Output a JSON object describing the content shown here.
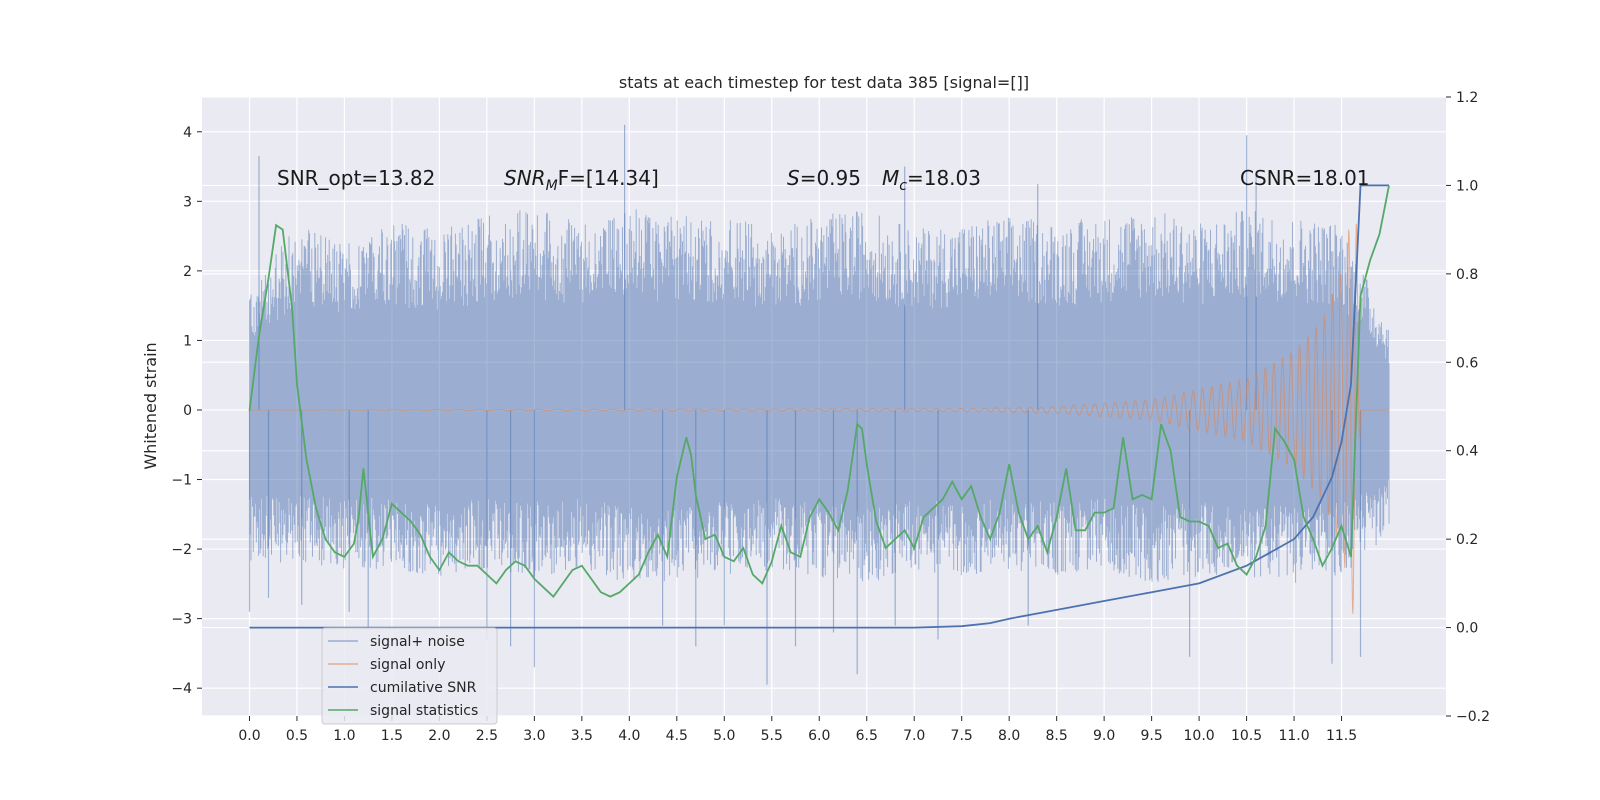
{
  "chart_data": {
    "type": "line",
    "title": "stats at each timestep for test data 385 [signal=[]]",
    "ylabel": "Whitened strain",
    "xlabel": "",
    "xlim": [
      -0.5,
      12.6
    ],
    "ylim": [
      -4.4,
      4.5
    ],
    "ylim_right": [
      -0.2,
      1.2
    ],
    "x_ticks": [
      0.0,
      0.5,
      1.0,
      1.5,
      2.0,
      2.5,
      3.0,
      3.5,
      4.0,
      4.5,
      5.0,
      5.5,
      6.0,
      6.5,
      7.0,
      7.5,
      8.0,
      8.5,
      9.0,
      9.5,
      10.0,
      10.5,
      11.0,
      11.5
    ],
    "x_tick_labels": [
      "0.0",
      "0.5",
      "1.0",
      "1.5",
      "2.0",
      "2.5",
      "3.0",
      "3.5",
      "4.0",
      "4.5",
      "5.0",
      "5.5",
      "6.0",
      "6.5",
      "7.0",
      "7.5",
      "8.0",
      "8.5",
      "9.0",
      "9.5",
      "10.0",
      "10.5",
      "11.0",
      "11.5"
    ],
    "y_ticks": [
      -4,
      -3,
      -2,
      -1,
      0,
      1,
      2,
      3,
      4
    ],
    "y_tick_labels": [
      "−4",
      "−3",
      "−2",
      "−1",
      "0",
      "1",
      "2",
      "3",
      "4"
    ],
    "y_ticks_right": [
      -0.2,
      0.0,
      0.2,
      0.4,
      0.6,
      0.8,
      1.0,
      1.2
    ],
    "y_tick_labels_right": [
      "−0.2",
      "0.0",
      "0.2",
      "0.4",
      "0.6",
      "0.8",
      "1.0",
      "1.2"
    ],
    "grid": true,
    "legend": {
      "placement": "lower-left",
      "entries": [
        "signal+ noise",
        "signal only",
        "cumilative SNR",
        "signal statistics"
      ]
    },
    "annotations": {
      "snr_opt": "SNR_opt=13.82",
      "snr_mf_pre": "SNR",
      "snr_mf_sub": "M",
      "snr_mf_post": "F=[14.34]",
      "s_pre": "S",
      "s_post": "=0.95",
      "mc_pre": "M",
      "mc_sub": "c",
      "mc_post": "=18.03",
      "csnr": "CSNR=18.01"
    },
    "series": [
      {
        "name": "signal+ noise",
        "axis": "left",
        "color": "#4c72b0",
        "description_of_values": "dense noise time series; envelope given below",
        "t_range": [
          0.0,
          12.0
        ],
        "upper_envelope": [
          [
            0.0,
            1.7
          ],
          [
            0.5,
            2.7
          ],
          [
            1.0,
            2.5
          ],
          [
            1.5,
            2.7
          ],
          [
            2.0,
            2.6
          ],
          [
            2.5,
            2.8
          ],
          [
            3.0,
            2.9
          ],
          [
            3.5,
            2.7
          ],
          [
            4.0,
            2.9
          ],
          [
            4.5,
            2.8
          ],
          [
            5.0,
            2.8
          ],
          [
            5.5,
            2.6
          ],
          [
            6.0,
            2.8
          ],
          [
            6.5,
            2.9
          ],
          [
            7.0,
            2.6
          ],
          [
            7.5,
            2.7
          ],
          [
            8.0,
            2.8
          ],
          [
            8.5,
            2.7
          ],
          [
            9.0,
            2.8
          ],
          [
            9.5,
            2.9
          ],
          [
            10.0,
            2.7
          ],
          [
            10.5,
            2.9
          ],
          [
            11.0,
            2.8
          ],
          [
            11.5,
            2.7
          ],
          [
            12.0,
            1.2
          ]
        ],
        "lower_envelope": [
          [
            0.0,
            -2.2
          ],
          [
            0.5,
            -2.2
          ],
          [
            1.0,
            -2.3
          ],
          [
            1.5,
            -2.3
          ],
          [
            2.0,
            -2.4
          ],
          [
            2.5,
            -2.3
          ],
          [
            3.0,
            -2.4
          ],
          [
            3.5,
            -2.3
          ],
          [
            4.0,
            -2.5
          ],
          [
            4.5,
            -2.5
          ],
          [
            5.0,
            -2.4
          ],
          [
            5.5,
            -2.3
          ],
          [
            6.0,
            -2.4
          ],
          [
            6.5,
            -2.5
          ],
          [
            7.0,
            -2.3
          ],
          [
            7.5,
            -2.4
          ],
          [
            8.0,
            -2.3
          ],
          [
            8.5,
            -2.4
          ],
          [
            9.0,
            -2.3
          ],
          [
            9.5,
            -2.5
          ],
          [
            10.0,
            -2.4
          ],
          [
            10.5,
            -2.4
          ],
          [
            11.0,
            -2.5
          ],
          [
            11.5,
            -2.4
          ],
          [
            12.0,
            -1.8
          ]
        ],
        "spikes": [
          [
            0.0,
            -2.9
          ],
          [
            0.1,
            3.65
          ],
          [
            0.2,
            -2.7
          ],
          [
            0.55,
            -2.8
          ],
          [
            1.05,
            -2.9
          ],
          [
            1.25,
            -3.15
          ],
          [
            2.5,
            -3.3
          ],
          [
            2.75,
            -3.4
          ],
          [
            3.0,
            -3.7
          ],
          [
            3.95,
            4.1
          ],
          [
            4.35,
            -3.1
          ],
          [
            4.7,
            -3.4
          ],
          [
            5.0,
            -3.1
          ],
          [
            5.45,
            -3.95
          ],
          [
            5.75,
            -3.4
          ],
          [
            6.15,
            -3.2
          ],
          [
            6.4,
            -3.8
          ],
          [
            6.8,
            -3.1
          ],
          [
            6.9,
            3.5
          ],
          [
            7.25,
            -3.3
          ],
          [
            8.2,
            -3.1
          ],
          [
            8.3,
            3.25
          ],
          [
            9.9,
            -3.55
          ],
          [
            10.5,
            3.95
          ],
          [
            10.6,
            3.4
          ],
          [
            11.4,
            -3.65
          ],
          [
            11.7,
            -3.55
          ]
        ]
      },
      {
        "name": "signal only",
        "axis": "left",
        "color": "#dd8452",
        "description_of_values": "chirp: flat near 0 until ~7.5, growing amplitude to ~+3.2/-3.1 at 11.65, then 0",
        "amplitude": [
          [
            0.0,
            0.0
          ],
          [
            7.5,
            0.02
          ],
          [
            8.5,
            0.05
          ],
          [
            9.5,
            0.15
          ],
          [
            10.0,
            0.3
          ],
          [
            10.5,
            0.45
          ],
          [
            11.0,
            0.85
          ],
          [
            11.3,
            1.3
          ],
          [
            11.5,
            2.0
          ],
          [
            11.6,
            2.8
          ],
          [
            11.65,
            3.2
          ],
          [
            11.7,
            0.0
          ],
          [
            12.0,
            0.0
          ]
        ]
      },
      {
        "name": "cumilative SNR",
        "axis": "right",
        "color": "#4c72b0",
        "x": [
          0.0,
          6.5,
          7.0,
          7.5,
          7.8,
          8.0,
          8.5,
          9.0,
          9.5,
          10.0,
          10.5,
          11.0,
          11.2,
          11.4,
          11.5,
          11.6,
          11.7,
          12.0
        ],
        "values": [
          0.0,
          0.0,
          0.0,
          0.003,
          0.01,
          0.02,
          0.04,
          0.06,
          0.08,
          0.1,
          0.14,
          0.2,
          0.25,
          0.34,
          0.42,
          0.55,
          1.0,
          1.0
        ]
      },
      {
        "name": "signal statistics",
        "axis": "right",
        "color": "#55a868",
        "x": [
          0.0,
          0.1,
          0.2,
          0.28,
          0.35,
          0.45,
          0.5,
          0.6,
          0.7,
          0.8,
          0.9,
          1.0,
          1.1,
          1.15,
          1.2,
          1.3,
          1.4,
          1.5,
          1.6,
          1.7,
          1.8,
          1.9,
          2.0,
          2.1,
          2.2,
          2.3,
          2.4,
          2.5,
          2.6,
          2.7,
          2.8,
          2.9,
          3.0,
          3.1,
          3.2,
          3.3,
          3.4,
          3.5,
          3.6,
          3.7,
          3.8,
          3.9,
          4.0,
          4.1,
          4.2,
          4.3,
          4.4,
          4.5,
          4.6,
          4.65,
          4.7,
          4.8,
          4.9,
          5.0,
          5.1,
          5.2,
          5.3,
          5.4,
          5.5,
          5.6,
          5.7,
          5.8,
          5.9,
          6.0,
          6.1,
          6.2,
          6.3,
          6.4,
          6.45,
          6.5,
          6.6,
          6.7,
          6.8,
          6.9,
          7.0,
          7.1,
          7.2,
          7.3,
          7.4,
          7.5,
          7.6,
          7.7,
          7.8,
          7.9,
          8.0,
          8.1,
          8.2,
          8.3,
          8.4,
          8.5,
          8.6,
          8.7,
          8.8,
          8.9,
          9.0,
          9.1,
          9.2,
          9.3,
          9.4,
          9.5,
          9.6,
          9.7,
          9.8,
          9.9,
          10.0,
          10.1,
          10.2,
          10.3,
          10.4,
          10.5,
          10.6,
          10.7,
          10.8,
          10.9,
          11.0,
          11.1,
          11.2,
          11.3,
          11.4,
          11.5,
          11.6,
          11.7,
          11.8,
          11.9,
          12.0
        ],
        "values": [
          0.49,
          0.66,
          0.79,
          0.91,
          0.9,
          0.72,
          0.55,
          0.38,
          0.27,
          0.2,
          0.17,
          0.16,
          0.19,
          0.25,
          0.36,
          0.16,
          0.2,
          0.28,
          0.26,
          0.24,
          0.21,
          0.16,
          0.13,
          0.17,
          0.15,
          0.14,
          0.14,
          0.12,
          0.1,
          0.13,
          0.15,
          0.14,
          0.11,
          0.09,
          0.07,
          0.1,
          0.13,
          0.14,
          0.11,
          0.08,
          0.07,
          0.08,
          0.1,
          0.12,
          0.17,
          0.21,
          0.16,
          0.34,
          0.43,
          0.39,
          0.3,
          0.2,
          0.21,
          0.16,
          0.15,
          0.18,
          0.12,
          0.1,
          0.15,
          0.23,
          0.17,
          0.16,
          0.25,
          0.29,
          0.26,
          0.22,
          0.31,
          0.46,
          0.45,
          0.37,
          0.24,
          0.18,
          0.2,
          0.22,
          0.18,
          0.25,
          0.27,
          0.29,
          0.33,
          0.29,
          0.32,
          0.25,
          0.2,
          0.26,
          0.37,
          0.26,
          0.2,
          0.23,
          0.17,
          0.25,
          0.36,
          0.22,
          0.22,
          0.26,
          0.26,
          0.27,
          0.43,
          0.29,
          0.3,
          0.29,
          0.46,
          0.4,
          0.25,
          0.24,
          0.24,
          0.23,
          0.18,
          0.19,
          0.14,
          0.12,
          0.16,
          0.23,
          0.45,
          0.42,
          0.38,
          0.25,
          0.2,
          0.14,
          0.18,
          0.23,
          0.16,
          0.75,
          0.83,
          0.89,
          1.0
        ]
      }
    ]
  }
}
